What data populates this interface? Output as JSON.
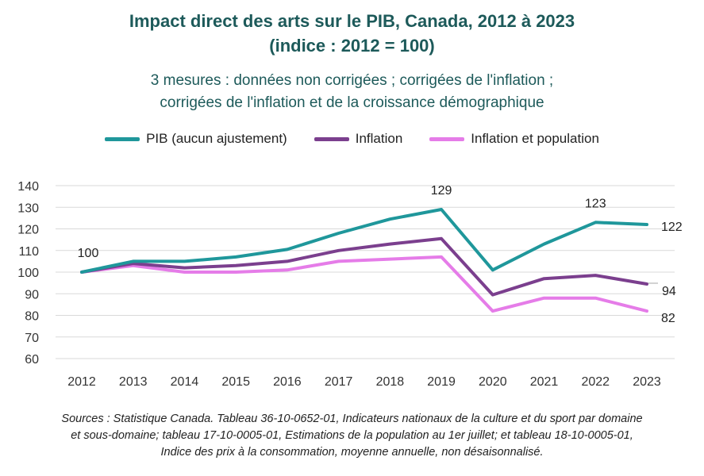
{
  "chart_data": {
    "type": "line",
    "title": [
      "Impact direct des arts sur le PIB, Canada, 2012 à 2023",
      "(indice : 2012  = 100)"
    ],
    "subtitle": [
      "3 mesures : données non corrigées ; corrigées de l'inflation ;",
      "corrigées de l'inflation et de la croissance démographique"
    ],
    "categories": [
      "2012",
      "2013",
      "2014",
      "2015",
      "2016",
      "2017",
      "2018",
      "2019",
      "2020",
      "2021",
      "2022",
      "2023"
    ],
    "y_ticks": [
      "140",
      "130",
      "120",
      "110",
      "100",
      "90",
      "80",
      "70",
      "60"
    ],
    "ylim": [
      60,
      140
    ],
    "grid": true,
    "legend_position": "top",
    "series": [
      {
        "name": "PIB (aucun ajustement)",
        "color": "#1f979b",
        "values": [
          100,
          105,
          105,
          107,
          110.5,
          118,
          124.5,
          129,
          101,
          113,
          123,
          122
        ]
      },
      {
        "name": "Inflation",
        "color": "#7b3f8e",
        "values": [
          100,
          104,
          102,
          103,
          105,
          110,
          113,
          115.5,
          89.5,
          97,
          98.5,
          94.5
        ]
      },
      {
        "name": "Inflation et population",
        "color": "#e57ce8",
        "values": [
          100,
          103,
          100,
          100,
          101,
          105,
          106,
          107,
          82,
          88,
          88,
          82
        ]
      }
    ],
    "data_labels": [
      {
        "series": 0,
        "index": 0,
        "text": "100"
      },
      {
        "series": 0,
        "index": 7,
        "text": "129"
      },
      {
        "series": 0,
        "index": 10,
        "text": "123"
      },
      {
        "series": 0,
        "index": 11,
        "text": "122"
      },
      {
        "series": 1,
        "index": 11,
        "text": "94"
      },
      {
        "series": 2,
        "index": 11,
        "text": "82"
      }
    ]
  },
  "source": [
    "Sources : Statistique Canada. Tableau 36-10-0652-01, Indicateurs nationaux de la culture et du sport par domaine",
    "et sous-domaine; tableau 17-10-0005-01, Estimations de la population au 1er juillet; et tableau 18-10-0005-01,",
    "Indice des prix à la consommation, moyenne annuelle, non désaisonnalisé."
  ]
}
